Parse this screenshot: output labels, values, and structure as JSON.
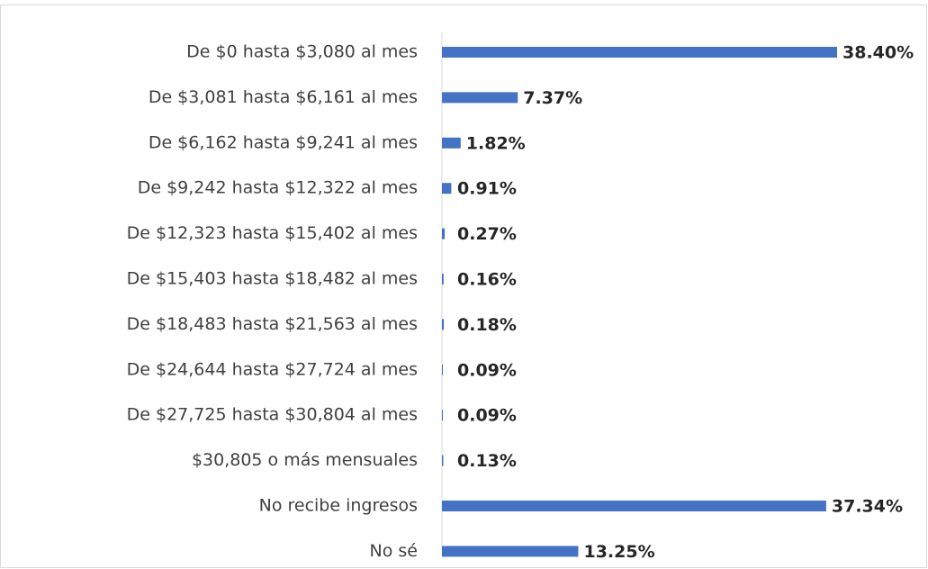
{
  "chart_data": {
    "type": "barh",
    "categories": [
      "De $0 hasta $3,080 al mes",
      "De $3,081 hasta $6,161 al mes",
      "De $6,162 hasta $9,241 al mes",
      "De $9,242 hasta $12,322 al mes",
      "De $12,323 hasta $15,402 al mes",
      "De $15,403 hasta $18,482 al mes",
      "De $18,483 hasta $21,563 al mes",
      "De $24,644 hasta $27,724 al mes",
      "De $27,725 hasta $30,804 al mes",
      "$30,805 o más mensuales",
      "No recibe ingresos",
      "No sé"
    ],
    "values": [
      38.4,
      7.37,
      1.82,
      0.91,
      0.27,
      0.16,
      0.18,
      0.09,
      0.09,
      0.13,
      37.34,
      13.25
    ],
    "value_labels": [
      "38.40%",
      "7.37%",
      "1.82%",
      "0.91%",
      "0.27%",
      "0.16%",
      "0.18%",
      "0.09%",
      "0.09%",
      "0.13%",
      "37.34%",
      "13.25%"
    ],
    "color": "#4472c4"
  }
}
